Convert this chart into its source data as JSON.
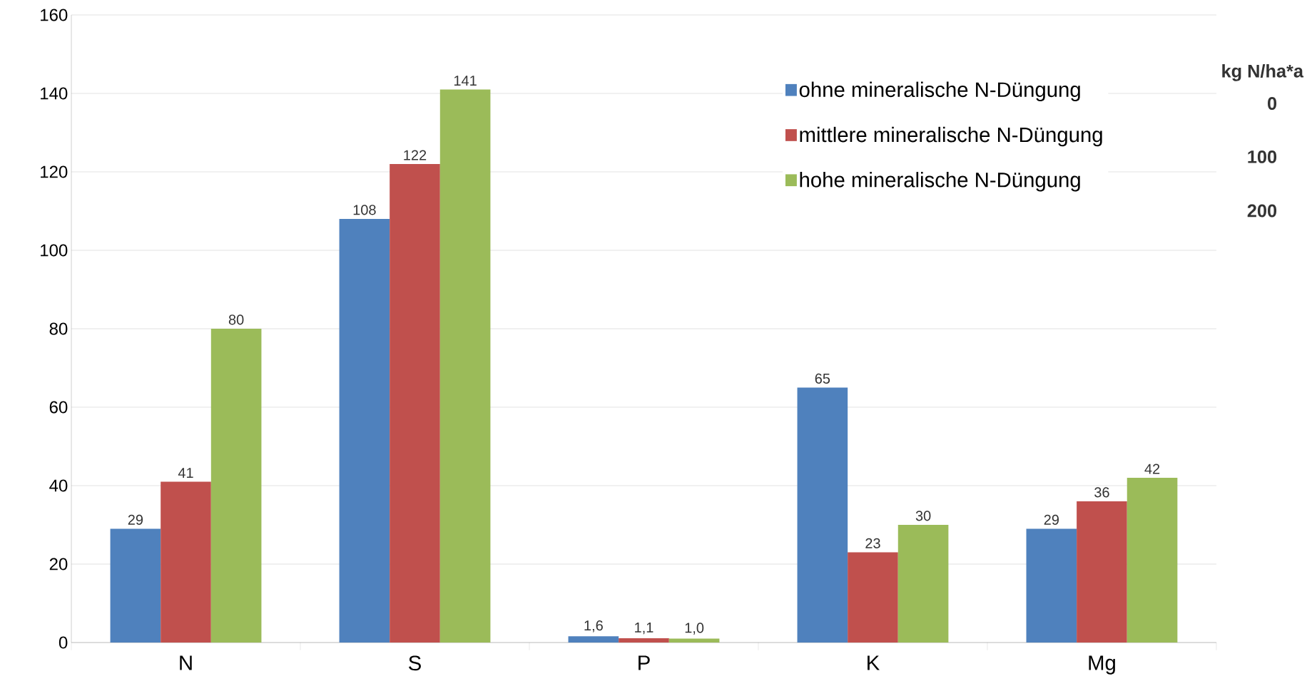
{
  "chart_data": {
    "type": "bar",
    "categories": [
      "N",
      "S",
      "P",
      "K",
      "Mg"
    ],
    "series": [
      {
        "name": "ohne mineralische N-Düngung",
        "color": "#4f81bd",
        "values": [
          29,
          108,
          1.6,
          65,
          29
        ],
        "value_labels": [
          "29",
          "108",
          "1,6",
          "65",
          "29"
        ]
      },
      {
        "name": "mittlere mineralische N-Düngung",
        "color": "#c0504d",
        "values": [
          41,
          122,
          1.1,
          23,
          36
        ],
        "value_labels": [
          "41",
          "122",
          "1,1",
          "23",
          "36"
        ]
      },
      {
        "name": "hohe mineralische N-Düngung",
        "color": "#9bbb59",
        "values": [
          80,
          141,
          1.0,
          30,
          42
        ],
        "value_labels": [
          "80",
          "141",
          "1,0",
          "30",
          "42"
        ]
      }
    ],
    "ylim": [
      0,
      160
    ],
    "yticks": [
      0,
      20,
      40,
      60,
      80,
      100,
      120,
      140,
      160
    ],
    "grid": "y",
    "legend": "top right",
    "legend_title": "kg N/ha*a",
    "annotations": [
      "0",
      "100",
      "200"
    ]
  }
}
